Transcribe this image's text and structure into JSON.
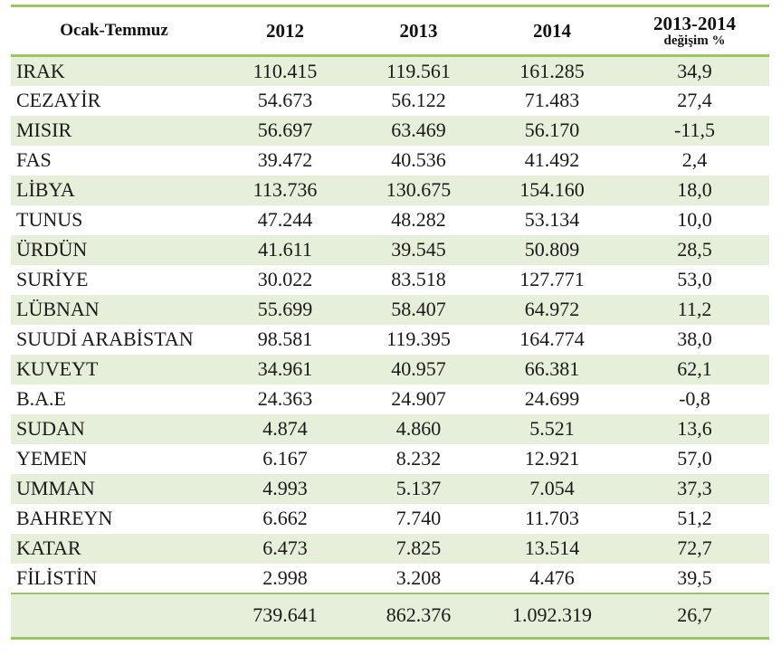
{
  "table": {
    "headers": {
      "period": "Ocak-Temmuz",
      "y2012": "2012",
      "y2013": "2013",
      "y2014": "2014",
      "change_main": "2013-2014",
      "change_sub": "değişim %"
    },
    "rows": [
      {
        "country": "IRAK",
        "y2012": "110.415",
        "y2013": "119.561",
        "y2014": "161.285",
        "change": "34,9"
      },
      {
        "country": "CEZAYİR",
        "y2012": "54.673",
        "y2013": "56.122",
        "y2014": "71.483",
        "change": "27,4"
      },
      {
        "country": "MISIR",
        "y2012": "56.697",
        "y2013": "63.469",
        "y2014": "56.170",
        "change": "-11,5"
      },
      {
        "country": "FAS",
        "y2012": "39.472",
        "y2013": "40.536",
        "y2014": "41.492",
        "change": "2,4"
      },
      {
        "country": "LİBYA",
        "y2012": "113.736",
        "y2013": "130.675",
        "y2014": "154.160",
        "change": "18,0"
      },
      {
        "country": "TUNUS",
        "y2012": "47.244",
        "y2013": "48.282",
        "y2014": "53.134",
        "change": "10,0"
      },
      {
        "country": "ÜRDÜN",
        "y2012": "41.611",
        "y2013": "39.545",
        "y2014": "50.809",
        "change": "28,5"
      },
      {
        "country": "SURİYE",
        "y2012": "30.022",
        "y2013": "83.518",
        "y2014": "127.771",
        "change": "53,0"
      },
      {
        "country": "LÜBNAN",
        "y2012": "55.699",
        "y2013": "58.407",
        "y2014": "64.972",
        "change": "11,2"
      },
      {
        "country": "SUUDİ ARABİSTAN",
        "y2012": "98.581",
        "y2013": "119.395",
        "y2014": "164.774",
        "change": "38,0"
      },
      {
        "country": "KUVEYT",
        "y2012": "34.961",
        "y2013": "40.957",
        "y2014": "66.381",
        "change": "62,1"
      },
      {
        "country": "B.A.E",
        "y2012": "24.363",
        "y2013": "24.907",
        "y2014": "24.699",
        "change": "-0,8"
      },
      {
        "country": "SUDAN",
        "y2012": "4.874",
        "y2013": "4.860",
        "y2014": "5.521",
        "change": "13,6"
      },
      {
        "country": "YEMEN",
        "y2012": "6.167",
        "y2013": "8.232",
        "y2014": "12.921",
        "change": "57,0"
      },
      {
        "country": "UMMAN",
        "y2012": "4.993",
        "y2013": "5.137",
        "y2014": "7.054",
        "change": "37,3"
      },
      {
        "country": "BAHREYN",
        "y2012": "6.662",
        "y2013": "7.740",
        "y2014": "11.703",
        "change": "51,2"
      },
      {
        "country": "KATAR",
        "y2012": "6.473",
        "y2013": "7.825",
        "y2014": "13.514",
        "change": "72,7"
      },
      {
        "country": "FİLİSTİN",
        "y2012": "2.998",
        "y2013": "3.208",
        "y2014": "4.476",
        "change": "39,5"
      }
    ],
    "total": {
      "label": "",
      "y2012": "739.641",
      "y2013": "862.376",
      "y2014": "1.092.319",
      "change": "26,7"
    }
  },
  "colors": {
    "rule_green": "#9ac55f",
    "shade_green": "#e6efd9",
    "text": "#1a1a1a"
  }
}
